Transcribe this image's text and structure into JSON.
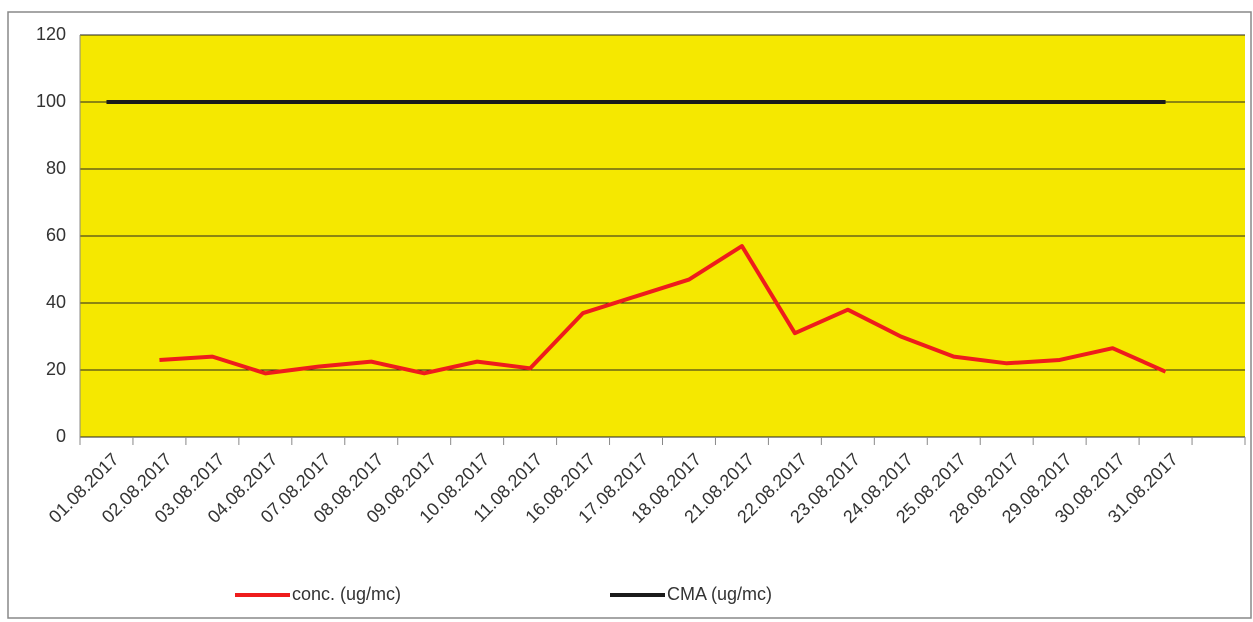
{
  "chart_data": {
    "type": "line",
    "categories": [
      "01.08.2017",
      "02.08.2017",
      "03.08.2017",
      "04.08.2017",
      "07.08.2017",
      "08.08.2017",
      "09.08.2017",
      "10.08.2017",
      "11.08.2017",
      "16.08.2017",
      "17.08.2017",
      "18.08.2017",
      "21.08.2017",
      "22.08.2017",
      "23.08.2017",
      "24.08.2017",
      "25.08.2017",
      "28.08.2017",
      "29.08.2017",
      "30.08.2017",
      "31.08.2017",
      null
    ],
    "series": [
      {
        "name": "conc. (ug/mc)",
        "color": "#ee1c1c",
        "values": [
          null,
          23,
          24,
          19,
          21,
          22.5,
          19,
          22.5,
          20.5,
          37,
          42,
          47,
          57,
          31,
          38,
          30,
          24,
          22,
          23,
          26.5,
          19.5,
          null
        ]
      },
      {
        "name": "CMA (ug/mc)",
        "color": "#1a1a1a",
        "values": [
          100,
          100,
          100,
          100,
          100,
          100,
          100,
          100,
          100,
          100,
          100,
          100,
          100,
          100,
          100,
          100,
          100,
          100,
          100,
          100,
          100,
          null
        ]
      }
    ],
    "ylim": [
      0,
      120
    ],
    "yticks": [
      0,
      20,
      40,
      60,
      80,
      100,
      120
    ],
    "grid": true,
    "background": "#f5e800"
  }
}
